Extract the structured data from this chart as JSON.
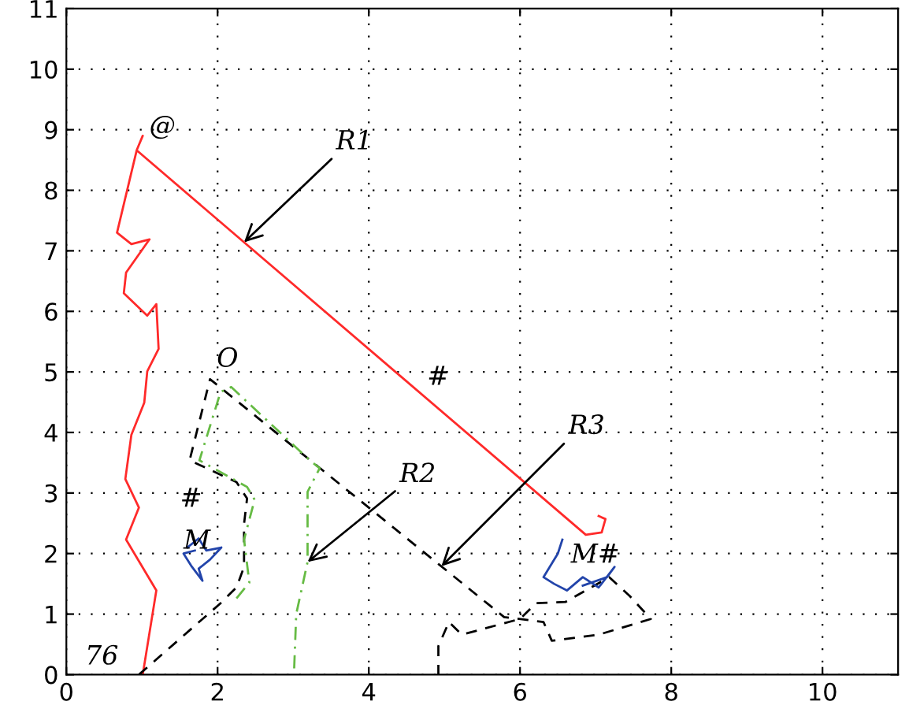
{
  "chart_data": {
    "type": "line",
    "xlim": [
      0,
      11
    ],
    "ylim": [
      0,
      11
    ],
    "xticks": [
      0,
      2,
      4,
      6,
      8,
      10
    ],
    "yticks": [
      0,
      1,
      2,
      3,
      4,
      5,
      6,
      7,
      8,
      9,
      10,
      11
    ],
    "grid": true,
    "marker": "none",
    "series": [
      {
        "color": "#ff2a2a",
        "line_style": "solid",
        "x": [
          1.01,
          1.19,
          0.79,
          0.96,
          0.78,
          0.86,
          1.03,
          1.07,
          1.22,
          1.19,
          1.07,
          0.76,
          0.79,
          1.1,
          0.86,
          0.67,
          0.93,
          1.01,
          0.93,
          6.87,
          7.08,
          7.13,
          7.04
        ],
        "values": [
          0,
          1.39,
          2.23,
          2.76,
          3.23,
          3.96,
          4.49,
          5.01,
          5.38,
          6.12,
          5.93,
          6.3,
          6.64,
          7.19,
          7.11,
          7.3,
          8.66,
          8.9,
          8.66,
          2.31,
          2.35,
          2.57,
          2.62
        ]
      },
      {
        "color": "#000000",
        "line_style": "dashed",
        "x": [
          0.96,
          2.04,
          2.25,
          2.35,
          2.35,
          2.39,
          2.25,
          1.63,
          1.9,
          5.79,
          6.31,
          6.42,
          7.04,
          7.73,
          7.45,
          7.18,
          6.6,
          6.21,
          6.0,
          5.23,
          5.06,
          4.92,
          4.92
        ],
        "values": [
          0,
          1.18,
          1.44,
          1.78,
          2.49,
          2.91,
          3.18,
          3.54,
          4.88,
          0.95,
          0.87,
          0.56,
          0.66,
          0.92,
          1.3,
          1.61,
          1.2,
          1.18,
          0.92,
          0.66,
          0.87,
          0.47,
          0
        ]
      },
      {
        "color": "#66bb44",
        "line_style": "dashdot",
        "x": [
          2.25,
          2.42,
          2.35,
          2.49,
          2.39,
          1.76,
          2.04,
          2.18,
          3.22,
          3.35,
          3.19,
          3.19,
          3.04,
          3.01
        ],
        "values": [
          1.26,
          1.52,
          2.23,
          2.89,
          3.1,
          3.54,
          4.67,
          4.75,
          3.54,
          3.41,
          3.02,
          1.86,
          1.0,
          0
        ]
      },
      {
        "color": "#2244aa",
        "line_style": "solid",
        "x": [
          1.6,
          1.75,
          1.85,
          2.05,
          1.9,
          1.75,
          1.8,
          1.65,
          1.55,
          1.7
        ],
        "values": [
          2.1,
          2.25,
          2.05,
          2.1,
          1.9,
          1.75,
          1.55,
          1.8,
          2.0,
          2.05
        ]
      },
      {
        "color": "#2244aa",
        "line_style": "solid",
        "x": [
          6.56,
          6.5,
          6.31,
          6.45,
          6.62,
          6.83,
          7.04,
          7.25,
          7.15,
          6.83
        ],
        "values": [
          2.23,
          2.0,
          1.61,
          1.5,
          1.39,
          1.61,
          1.44,
          1.78,
          1.61,
          1.47
        ]
      }
    ],
    "annotations": [
      {
        "text": "R1",
        "x": 2.35,
        "y": 7.14
      },
      {
        "text": "R2",
        "x": 3.19,
        "y": 1.86
      },
      {
        "text": "R3",
        "x": 4.96,
        "y": 1.79
      },
      {
        "text": "O",
        "x": 1.9,
        "y": 4.88
      },
      {
        "text": "@",
        "x": 1.01,
        "y": 8.9
      },
      "#",
      "#",
      "M",
      "M#",
      {
        "text": "76",
        "x": 0.96,
        "y": 0
      }
    ]
  }
}
